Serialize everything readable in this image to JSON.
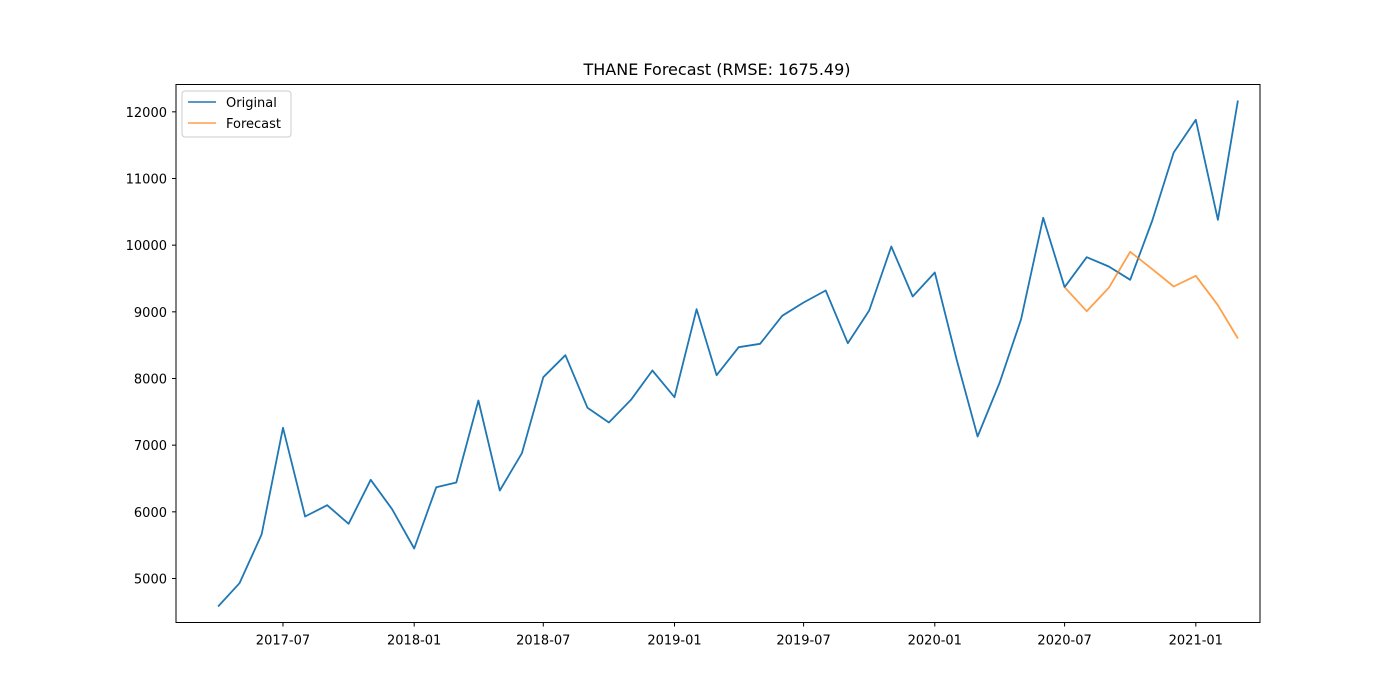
{
  "chart_data": {
    "type": "line",
    "title": "THANE Forecast (RMSE: 1675.49)",
    "xlabel": "",
    "ylabel": "",
    "x_range": [
      "2017-02-01",
      "2021-04-01"
    ],
    "ylim": [
      4340,
      12410
    ],
    "x_ticks": [
      {
        "date": "2017-07-01",
        "label": "2017-07"
      },
      {
        "date": "2018-01-01",
        "label": "2018-01"
      },
      {
        "date": "2018-07-01",
        "label": "2018-07"
      },
      {
        "date": "2019-01-01",
        "label": "2019-01"
      },
      {
        "date": "2019-07-01",
        "label": "2019-07"
      },
      {
        "date": "2020-01-01",
        "label": "2020-01"
      },
      {
        "date": "2020-07-01",
        "label": "2020-07"
      },
      {
        "date": "2021-01-01",
        "label": "2021-01"
      }
    ],
    "y_ticks": [
      5000,
      6000,
      7000,
      8000,
      9000,
      10000,
      11000,
      12000
    ],
    "grid": false,
    "legend_position": "top-left",
    "series": [
      {
        "name": "Original",
        "color": "#1f77b4",
        "x": [
          "2017-04-01",
          "2017-05-01",
          "2017-06-01",
          "2017-07-01",
          "2017-08-01",
          "2017-09-01",
          "2017-10-01",
          "2017-11-01",
          "2017-12-01",
          "2018-01-01",
          "2018-02-01",
          "2018-03-01",
          "2018-04-01",
          "2018-05-01",
          "2018-06-01",
          "2018-07-01",
          "2018-08-01",
          "2018-09-01",
          "2018-10-01",
          "2018-11-01",
          "2018-12-01",
          "2019-01-01",
          "2019-02-01",
          "2019-03-01",
          "2019-04-01",
          "2019-05-01",
          "2019-06-01",
          "2019-07-01",
          "2019-08-01",
          "2019-09-01",
          "2019-10-01",
          "2019-11-01",
          "2019-12-01",
          "2020-01-01",
          "2020-02-01",
          "2020-03-01",
          "2020-04-01",
          "2020-05-01",
          "2020-06-01",
          "2020-07-01",
          "2020-08-01",
          "2020-09-01",
          "2020-10-01",
          "2020-11-01",
          "2020-12-01",
          "2021-01-01",
          "2021-02-01",
          "2021-03-01"
        ],
        "values": [
          4580,
          4930,
          5660,
          7260,
          5930,
          6100,
          5820,
          6480,
          6040,
          5450,
          6370,
          6440,
          7670,
          6320,
          6880,
          8020,
          8350,
          7560,
          7340,
          7680,
          8120,
          7720,
          9040,
          8050,
          8470,
          8520,
          8940,
          9140,
          9320,
          8530,
          9020,
          9980,
          9230,
          9590,
          8270,
          7130,
          7940,
          8890,
          10410,
          9370,
          9820,
          9680,
          9480,
          10370,
          11390,
          11880,
          10380,
          12170
        ]
      },
      {
        "name": "Forecast",
        "color": "#ff7f0e",
        "x": [
          "2020-07-01",
          "2020-08-01",
          "2020-09-01",
          "2020-10-01",
          "2020-11-01",
          "2020-12-01",
          "2021-01-01",
          "2021-02-01",
          "2021-03-01"
        ],
        "values": [
          9370,
          9010,
          9360,
          9900,
          9640,
          9380,
          9540,
          9100,
          8600
        ]
      }
    ]
  }
}
